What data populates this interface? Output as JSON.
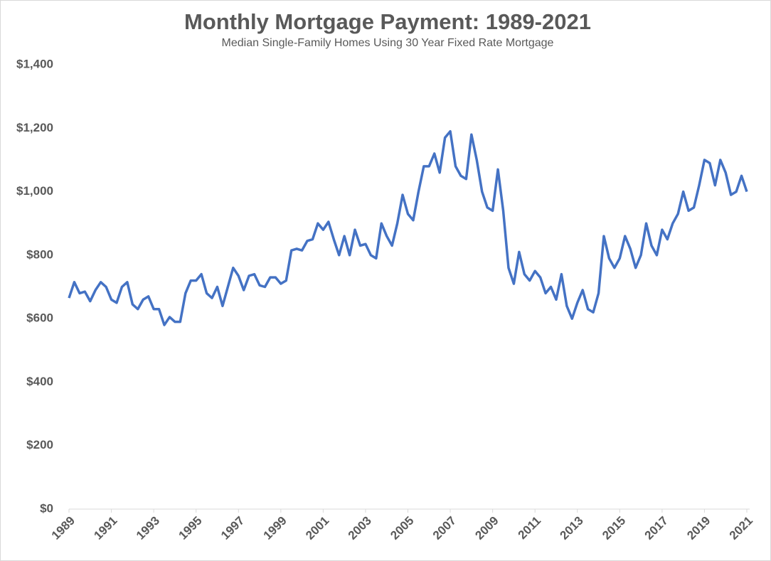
{
  "chart_data": {
    "type": "line",
    "title": "Monthly Mortgage Payment: 1989-2021",
    "subtitle": "Median Single-Family Homes Using 30 Year Fixed Rate Mortgage",
    "x": [
      1989,
      1989.25,
      1989.5,
      1989.75,
      1990,
      1990.25,
      1990.5,
      1990.75,
      1991,
      1991.25,
      1991.5,
      1991.75,
      1992,
      1992.25,
      1992.5,
      1992.75,
      1993,
      1993.25,
      1993.5,
      1993.75,
      1994,
      1994.25,
      1994.5,
      1994.75,
      1995,
      1995.25,
      1995.5,
      1995.75,
      1996,
      1996.25,
      1996.5,
      1996.75,
      1997,
      1997.25,
      1997.5,
      1997.75,
      1998,
      1998.25,
      1998.5,
      1998.75,
      1999,
      1999.25,
      1999.5,
      1999.75,
      2000,
      2000.25,
      2000.5,
      2000.75,
      2001,
      2001.25,
      2001.5,
      2001.75,
      2002,
      2002.25,
      2002.5,
      2002.75,
      2003,
      2003.25,
      2003.5,
      2003.75,
      2004,
      2004.25,
      2004.5,
      2004.75,
      2005,
      2005.25,
      2005.5,
      2005.75,
      2006,
      2006.25,
      2006.5,
      2006.75,
      2007,
      2007.25,
      2007.5,
      2007.75,
      2008,
      2008.25,
      2008.5,
      2008.75,
      2009,
      2009.25,
      2009.5,
      2009.75,
      2010,
      2010.25,
      2010.5,
      2010.75,
      2011,
      2011.25,
      2011.5,
      2011.75,
      2012,
      2012.25,
      2012.5,
      2012.75,
      2013,
      2013.25,
      2013.5,
      2013.75,
      2014,
      2014.25,
      2014.5,
      2014.75,
      2015,
      2015.25,
      2015.5,
      2015.75,
      2016,
      2016.25,
      2016.5,
      2016.75,
      2017,
      2017.25,
      2017.5,
      2017.75,
      2018,
      2018.25,
      2018.5,
      2018.75,
      2019,
      2019.25,
      2019.5,
      2019.75,
      2020,
      2020.25,
      2020.5,
      2020.75,
      2021
    ],
    "series": [
      {
        "name": "Monthly Mortgage Payment",
        "color": "#4472c4",
        "values": [
          665,
          715,
          680,
          685,
          655,
          690,
          715,
          700,
          660,
          650,
          700,
          715,
          645,
          630,
          660,
          670,
          630,
          630,
          580,
          605,
          590,
          590,
          680,
          720,
          720,
          740,
          680,
          665,
          700,
          640,
          700,
          760,
          735,
          690,
          735,
          740,
          705,
          700,
          730,
          730,
          710,
          720,
          815,
          820,
          815,
          845,
          850,
          900,
          880,
          905,
          850,
          800,
          860,
          800,
          880,
          830,
          835,
          800,
          790,
          900,
          860,
          830,
          900,
          990,
          930,
          910,
          1000,
          1080,
          1080,
          1120,
          1060,
          1170,
          1190,
          1080,
          1050,
          1040,
          1180,
          1100,
          1000,
          950,
          940,
          1070,
          940,
          760,
          710,
          810,
          740,
          720,
          750,
          730,
          680,
          700,
          660,
          740,
          640,
          600,
          650,
          690,
          630,
          620,
          680,
          860,
          790,
          760,
          790,
          860,
          820,
          760,
          800,
          900,
          830,
          800,
          880,
          850,
          900,
          930,
          1000,
          940,
          950,
          1020,
          1100,
          1090,
          1020,
          1100,
          1060,
          990,
          1000,
          1050,
          1000
        ]
      }
    ],
    "xlim": [
      1989,
      2021
    ],
    "xticks": [
      1989,
      1991,
      1993,
      1995,
      1997,
      1999,
      2001,
      2003,
      2005,
      2007,
      2009,
      2011,
      2013,
      2015,
      2017,
      2019,
      2021
    ],
    "ylim": [
      0,
      1400
    ],
    "yticks": [
      {
        "value": 0,
        "label": "$0"
      },
      {
        "value": 200,
        "label": "$200"
      },
      {
        "value": 400,
        "label": "$400"
      },
      {
        "value": 600,
        "label": "$600"
      },
      {
        "value": 800,
        "label": "$800"
      },
      {
        "value": 1000,
        "label": "$1,000"
      },
      {
        "value": 1200,
        "label": "$1,200"
      },
      {
        "value": 1400,
        "label": "$1,400"
      }
    ],
    "grid": false
  }
}
